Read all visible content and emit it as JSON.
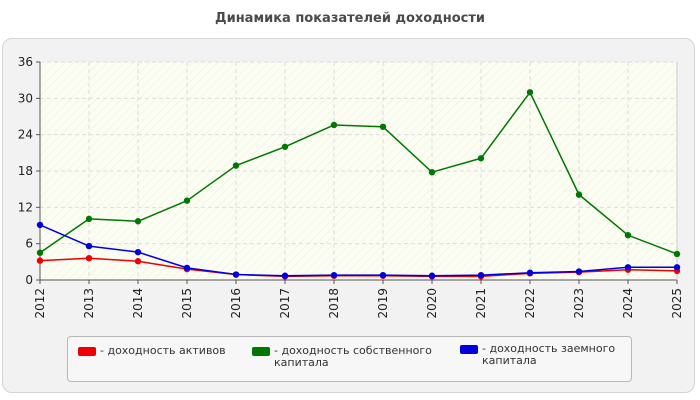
{
  "title": "Динамика показателей доходности",
  "colors": {
    "panel": "#f2f2f2",
    "plot_bg": "#fbfcf2",
    "grid": "#dddddd"
  },
  "legend": [
    {
      "label": "- доходность активов",
      "color": "#ee0000"
    },
    {
      "label": "- доходность собственного\nкапитала",
      "color": "#007700"
    },
    {
      "label": "- доходность заемного\nкапитала",
      "color": "#0000dd"
    }
  ],
  "chart_data": {
    "type": "line",
    "title": "Динамика показателей доходности",
    "xlabel": "",
    "ylabel": "",
    "categories": [
      "2012",
      "2013",
      "2014",
      "2015",
      "2016",
      "2017",
      "2018",
      "2019",
      "2020",
      "2021",
      "2022",
      "2023",
      "2024",
      "2025"
    ],
    "ylim": [
      0,
      36
    ],
    "yticks": [
      0,
      6,
      12,
      18,
      24,
      30,
      36
    ],
    "grid": true,
    "legend_position": "bottom",
    "series": [
      {
        "name": "- доходность активов",
        "color": "#ee0000",
        "values": [
          3.2,
          3.6,
          3.1,
          1.8,
          0.9,
          0.6,
          0.7,
          0.7,
          0.6,
          0.6,
          1.1,
          1.3,
          1.7,
          1.5
        ]
      },
      {
        "name": "- доходность собственного капитала",
        "color": "#007700",
        "values": [
          4.5,
          10.1,
          9.7,
          13.1,
          18.9,
          22.0,
          25.6,
          25.3,
          17.8,
          20.1,
          31.0,
          14.1,
          7.4,
          4.3
        ]
      },
      {
        "name": "- доходность заемного капитала",
        "color": "#0000dd",
        "values": [
          9.1,
          5.6,
          4.6,
          2.0,
          0.9,
          0.7,
          0.8,
          0.8,
          0.7,
          0.8,
          1.2,
          1.4,
          2.1,
          2.1
        ]
      }
    ]
  }
}
